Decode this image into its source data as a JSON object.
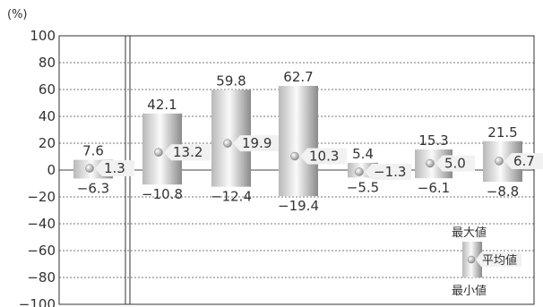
{
  "chart_data": {
    "type": "bar",
    "subtype": "floating-range-with-average",
    "unit_label": "(%)",
    "ylim": [
      -100,
      100
    ],
    "yticks": [
      100,
      80,
      60,
      40,
      20,
      0,
      -20,
      -40,
      -60,
      -80,
      -100
    ],
    "grid": true,
    "bars": [
      {
        "max": 7.6,
        "min": -6.3,
        "avg": 1.3,
        "max_label": "7.6",
        "min_label": "−6.3",
        "avg_label": "1.3"
      },
      {
        "max": 42.1,
        "min": -10.8,
        "avg": 13.2,
        "max_label": "42.1",
        "min_label": "−10.8",
        "avg_label": "13.2"
      },
      {
        "max": 59.8,
        "min": -12.4,
        "avg": 19.9,
        "max_label": "59.8",
        "min_label": "−12.4",
        "avg_label": "19.9"
      },
      {
        "max": 62.7,
        "min": -19.4,
        "avg": 10.3,
        "max_label": "62.7",
        "min_label": "−19.4",
        "avg_label": "10.3"
      },
      {
        "max": 5.4,
        "min": -5.5,
        "avg": -1.3,
        "max_label": "5.4",
        "min_label": "−5.5",
        "avg_label": "−1.3"
      },
      {
        "max": 15.3,
        "min": -6.1,
        "avg": 5.0,
        "max_label": "15.3",
        "min_label": "−6.1",
        "avg_label": "5.0"
      },
      {
        "max": 21.5,
        "min": -8.8,
        "avg": 6.7,
        "max_label": "21.5",
        "min_label": "−8.8",
        "avg_label": "6.7"
      }
    ],
    "legend": {
      "max_label": "最大値",
      "avg_label": "平均値",
      "min_label": "最小値",
      "placement": "bottom-right"
    }
  }
}
